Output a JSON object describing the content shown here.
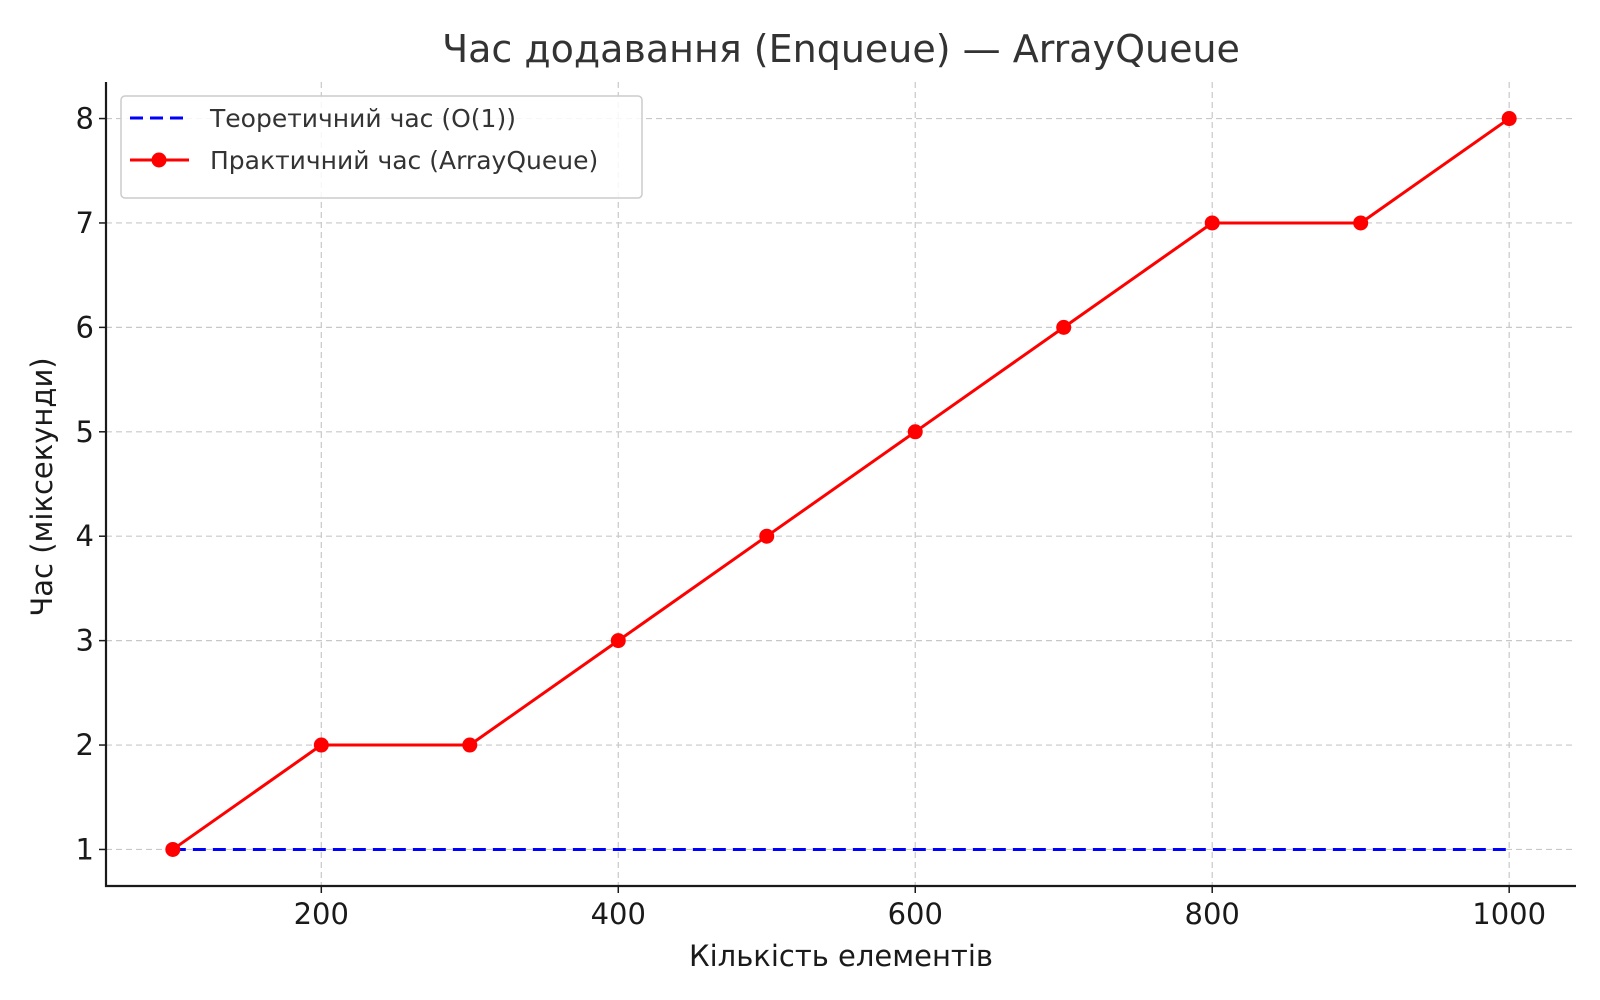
{
  "chart_data": {
    "type": "line",
    "title": "Час додавання (Enqueue) — ArrayQueue",
    "xlabel": "Кількість елементів",
    "ylabel": "Час (мiксекунди)",
    "x": [
      100,
      200,
      300,
      400,
      500,
      600,
      700,
      800,
      900,
      1000
    ],
    "xlim": [
      55,
      1045
    ],
    "ylim": [
      0.65,
      8.35
    ],
    "xticks": [
      200,
      400,
      600,
      800,
      1000
    ],
    "yticks": [
      1,
      2,
      3,
      4,
      5,
      6,
      7,
      8
    ],
    "grid": true,
    "legend_position": "top-left",
    "series": [
      {
        "name": "Теоретичний час (O(1))",
        "values": [
          1,
          1,
          1,
          1,
          1,
          1,
          1,
          1,
          1,
          1
        ],
        "color": "#0000ff",
        "style": "dashed",
        "marker": "none"
      },
      {
        "name": "Практичний час (ArrayQueue)",
        "values": [
          1,
          2,
          2,
          3,
          4,
          5,
          6,
          7,
          7,
          8
        ],
        "color": "#ff0000",
        "style": "solid",
        "marker": "circle"
      }
    ]
  }
}
